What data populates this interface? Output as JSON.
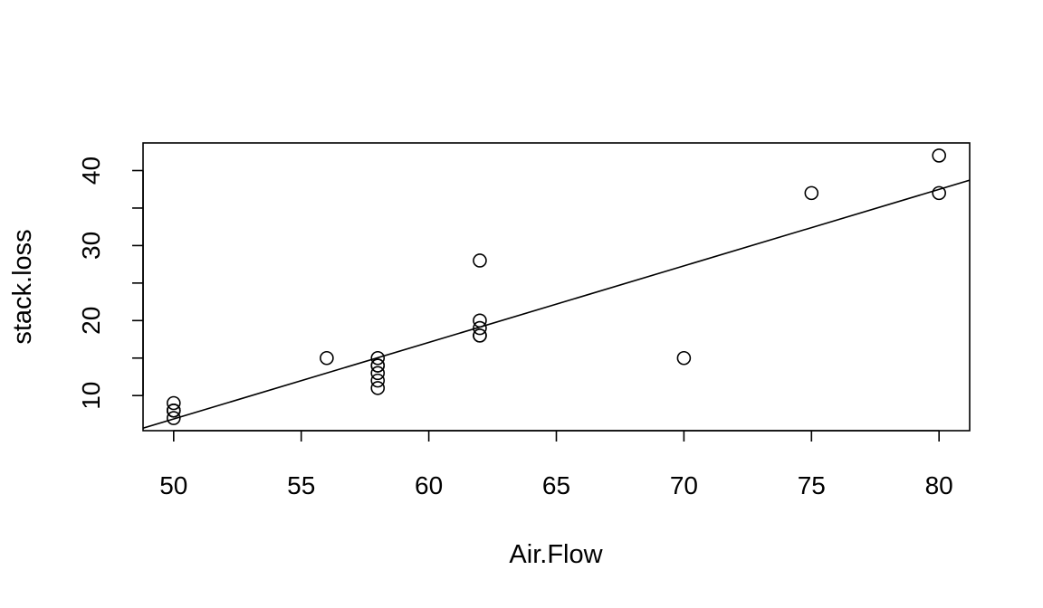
{
  "chart_data": {
    "type": "scatter",
    "title": "",
    "xlabel": "Air.Flow",
    "ylabel": "stack.loss",
    "xlim": [
      48.8,
      81.2
    ],
    "ylim": [
      5.32,
      43.68
    ],
    "x_ticks": [
      50,
      55,
      60,
      65,
      70,
      75,
      80
    ],
    "x_tick_labels": [
      "50",
      "55",
      "60",
      "65",
      "70",
      "75",
      "80"
    ],
    "y_ticks": [
      10,
      15,
      20,
      25,
      30,
      35,
      40
    ],
    "y_tick_labels": [
      "10",
      "",
      "20",
      "",
      "30",
      "",
      "40"
    ],
    "grid": false,
    "marker": "open-circle",
    "points": [
      {
        "x": 80,
        "y": 42
      },
      {
        "x": 80,
        "y": 37
      },
      {
        "x": 75,
        "y": 37
      },
      {
        "x": 62,
        "y": 28
      },
      {
        "x": 62,
        "y": 18
      },
      {
        "x": 62,
        "y": 18
      },
      {
        "x": 62,
        "y": 19
      },
      {
        "x": 62,
        "y": 20
      },
      {
        "x": 58,
        "y": 15
      },
      {
        "x": 58,
        "y": 14
      },
      {
        "x": 58,
        "y": 14
      },
      {
        "x": 58,
        "y": 13
      },
      {
        "x": 58,
        "y": 11
      },
      {
        "x": 58,
        "y": 12
      },
      {
        "x": 50,
        "y": 8
      },
      {
        "x": 50,
        "y": 7
      },
      {
        "x": 50,
        "y": 8
      },
      {
        "x": 50,
        "y": 8
      },
      {
        "x": 50,
        "y": 9
      },
      {
        "x": 56,
        "y": 15
      },
      {
        "x": 70,
        "y": 15
      }
    ],
    "regression_line": {
      "intercept": -44.132,
      "slope": 1.0203
    }
  }
}
